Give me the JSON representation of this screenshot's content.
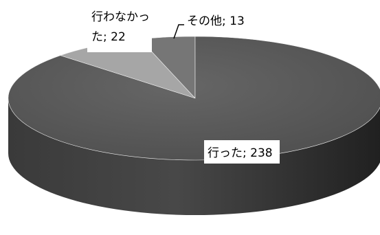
{
  "chart_data": {
    "type": "pie",
    "style": "3d",
    "categories": [
      "行った",
      "行わなかった",
      "その他"
    ],
    "values": [
      238,
      22,
      13
    ],
    "title": "",
    "legend": "none",
    "data_labels": [
      "行った; 238",
      "行わなかった; 22",
      "その他; 13"
    ],
    "colors": {
      "行った": "#5a5a5a",
      "行わなかった": "#a6a6a6",
      "その他": "#767676"
    }
  }
}
